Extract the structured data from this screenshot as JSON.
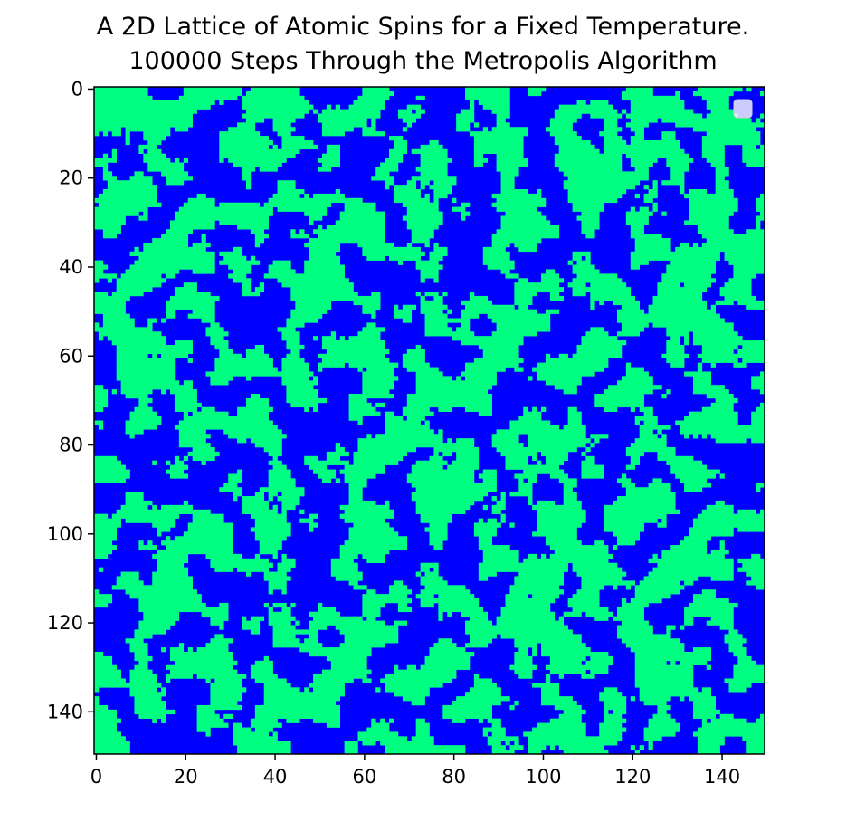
{
  "chart_data": {
    "type": "heatmap",
    "title_lines": [
      "A 2D Lattice of Atomic Spins for a Fixed Temperature.",
      "100000 Steps Through the Metropolis Algorithm"
    ],
    "xlabel": "",
    "ylabel": "",
    "grid_size": [
      150,
      150
    ],
    "xlim": [
      -0.5,
      149.5
    ],
    "ylim": [
      149.5,
      -0.5
    ],
    "x_ticks": [
      0,
      20,
      40,
      60,
      80,
      100,
      120,
      140
    ],
    "y_ticks": [
      0,
      20,
      40,
      60,
      80,
      100,
      120,
      140
    ],
    "spin_values": [
      -1,
      1
    ],
    "colors": {
      "spin_down": "#0000ff",
      "spin_up": "#00ff80"
    },
    "up_fraction": 0.5,
    "grid": false,
    "legend": {
      "placement": "upper-right",
      "entries": []
    }
  }
}
